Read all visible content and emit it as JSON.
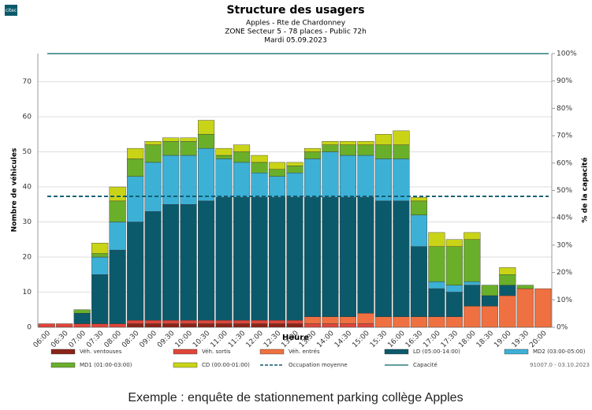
{
  "chart_data": {
    "type": "stacked_bar",
    "logo": "citec",
    "title": "Structure des usagers",
    "subtitle": [
      "Apples - Rte de Chardonney",
      "ZONE Secteur 5 - 78 places - Public 72h",
      "Mardi  05.09.2023"
    ],
    "x_label": "Heure",
    "y_label": "Nombre de véhicules",
    "y2_label": "% de la capacité",
    "categories": [
      "06:00",
      "06:30",
      "07:00",
      "07:30",
      "08:00",
      "08:30",
      "09:00",
      "09:30",
      "10:00",
      "10:30",
      "11:00",
      "11:30",
      "12:00",
      "12:30",
      "13:00",
      "13:30",
      "14:00",
      "14:30",
      "15:00",
      "15:30",
      "16:00",
      "16:30",
      "17:00",
      "17:30",
      "18:00",
      "18:30",
      "19:00",
      "19:30",
      "20:00"
    ],
    "series": [
      {
        "name": "Véh. ventouses",
        "color": "#8b2318",
        "values": [
          0,
          0,
          0,
          0,
          0,
          1,
          1,
          1,
          1,
          1,
          1,
          1,
          1,
          1,
          1,
          0,
          0,
          0,
          0,
          0,
          0,
          0,
          0,
          0,
          0,
          0,
          0,
          0,
          0
        ]
      },
      {
        "name": "Véh. sortis",
        "color": "#e0453a",
        "values": [
          1,
          1,
          1,
          1,
          1,
          1,
          1,
          1,
          1,
          1,
          1,
          1,
          1,
          1,
          1,
          1,
          1,
          1,
          1,
          0,
          0,
          0,
          0,
          0,
          0,
          0,
          0,
          0,
          0
        ]
      },
      {
        "name": "Véh. entrés",
        "color": "#ef7040",
        "values": [
          0,
          0,
          0,
          0,
          0,
          0,
          0,
          0,
          0,
          0,
          0,
          0,
          0,
          0,
          0,
          2,
          2,
          2,
          3,
          3,
          3,
          3,
          3,
          3,
          6,
          6,
          9,
          11,
          11
        ]
      },
      {
        "name": "LD (05:00-14:00)",
        "color": "#0b5a6b",
        "values": [
          0,
          0,
          3,
          14,
          21,
          28,
          31,
          33,
          33,
          34,
          35,
          35,
          35,
          35,
          35,
          34,
          34,
          34,
          33,
          33,
          33,
          20,
          8,
          7,
          6,
          3,
          3,
          0,
          0
        ]
      },
      {
        "name": "MD2 (03:00-05:00)",
        "color": "#3db0d6",
        "values": [
          0,
          0,
          0,
          5,
          8,
          13,
          14,
          14,
          14,
          15,
          11,
          10,
          7,
          6,
          7,
          11,
          13,
          12,
          12,
          12,
          12,
          9,
          2,
          2,
          1,
          0,
          0,
          0,
          0
        ]
      },
      {
        "name": "MD1 (01:00-03:00)",
        "color": "#6aaf2a",
        "values": [
          0,
          0,
          1,
          1,
          6,
          5,
          5,
          4,
          4,
          4,
          1,
          3,
          3,
          2,
          2,
          2,
          2,
          3,
          3,
          4,
          4,
          4,
          10,
          11,
          12,
          3,
          3,
          1,
          0
        ]
      },
      {
        "name": "CD (00:00-01:00)",
        "color": "#c9d417",
        "values": [
          0,
          0,
          0,
          3,
          4,
          3,
          1,
          1,
          1,
          4,
          2,
          2,
          2,
          2,
          1,
          1,
          1,
          1,
          1,
          3,
          4,
          1,
          4,
          2,
          2,
          0,
          2,
          0,
          0
        ]
      }
    ],
    "reference_lines": [
      {
        "name": "Occupation moyenne",
        "color": "#0b5a6b",
        "dashed": true,
        "value": 37.3
      },
      {
        "name": "Capacité",
        "color": "#2f7d78",
        "dashed": false,
        "value": 78
      }
    ],
    "ylim": [
      0,
      78
    ],
    "yticks": [
      0,
      10,
      20,
      30,
      40,
      50,
      60,
      70
    ],
    "y2lim": [
      0,
      100
    ],
    "y2ticks": [
      {
        "value": 0,
        "label": "0%"
      },
      {
        "value": 10,
        "label": "10%"
      },
      {
        "value": 20,
        "label": "20%"
      },
      {
        "value": 30,
        "label": "30%"
      },
      {
        "value": 40,
        "label": "40%"
      },
      {
        "value": 50,
        "label": "50%"
      },
      {
        "value": 60,
        "label": "60%"
      },
      {
        "value": 70,
        "label": "70%"
      },
      {
        "value": 80,
        "label": "80%"
      },
      {
        "value": 90,
        "label": "90%"
      },
      {
        "value": 100,
        "label": "100%"
      }
    ],
    "grid": true,
    "footer": "91007.0 - 03.10.2023",
    "caption": "Exemple : enquête de stationnement parking collège Apples"
  }
}
